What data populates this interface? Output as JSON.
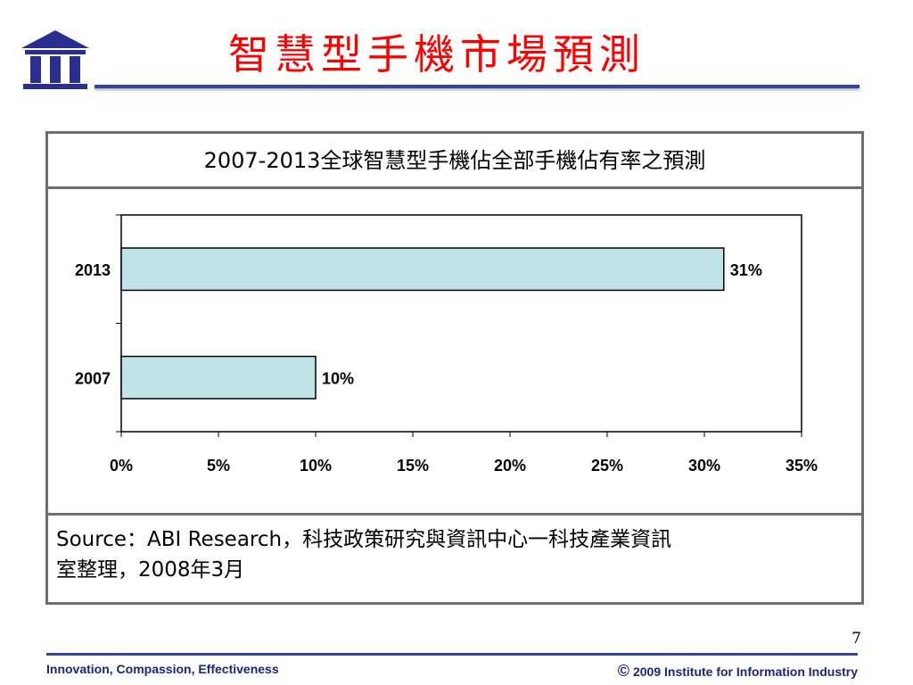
{
  "slide": {
    "title": "智慧型手機市場預測",
    "page_number": "7",
    "source_line1": "Source：ABI Research，科技政策研究與資訊中心一科技產業資訊",
    "source_line2": "室整理，2008年3月"
  },
  "footer": {
    "left": "Innovation, Compassion, Effectiveness",
    "right": "2009 Institute for Information Industry",
    "copyright_symbol": "©"
  },
  "colors": {
    "title": "#ff0000",
    "rule": "#3344a0",
    "bar_fill": "#bfe3e6",
    "footer_text": "#1a2580"
  },
  "chart_data": {
    "type": "bar",
    "orientation": "horizontal",
    "title": "2007-2013全球智慧型手機佔全部手機佔有率之預測",
    "categories": [
      "2013",
      "2007"
    ],
    "values": [
      31,
      10
    ],
    "data_labels": [
      "31%",
      "10%"
    ],
    "xlim": [
      0,
      35
    ],
    "x_ticks": [
      0,
      5,
      10,
      15,
      20,
      25,
      30,
      35
    ],
    "x_tick_labels": [
      "0%",
      "5%",
      "10%",
      "15%",
      "20%",
      "25%",
      "30%",
      "35%"
    ],
    "xlabel": "",
    "ylabel": "",
    "grid": false,
    "legend": "none"
  }
}
